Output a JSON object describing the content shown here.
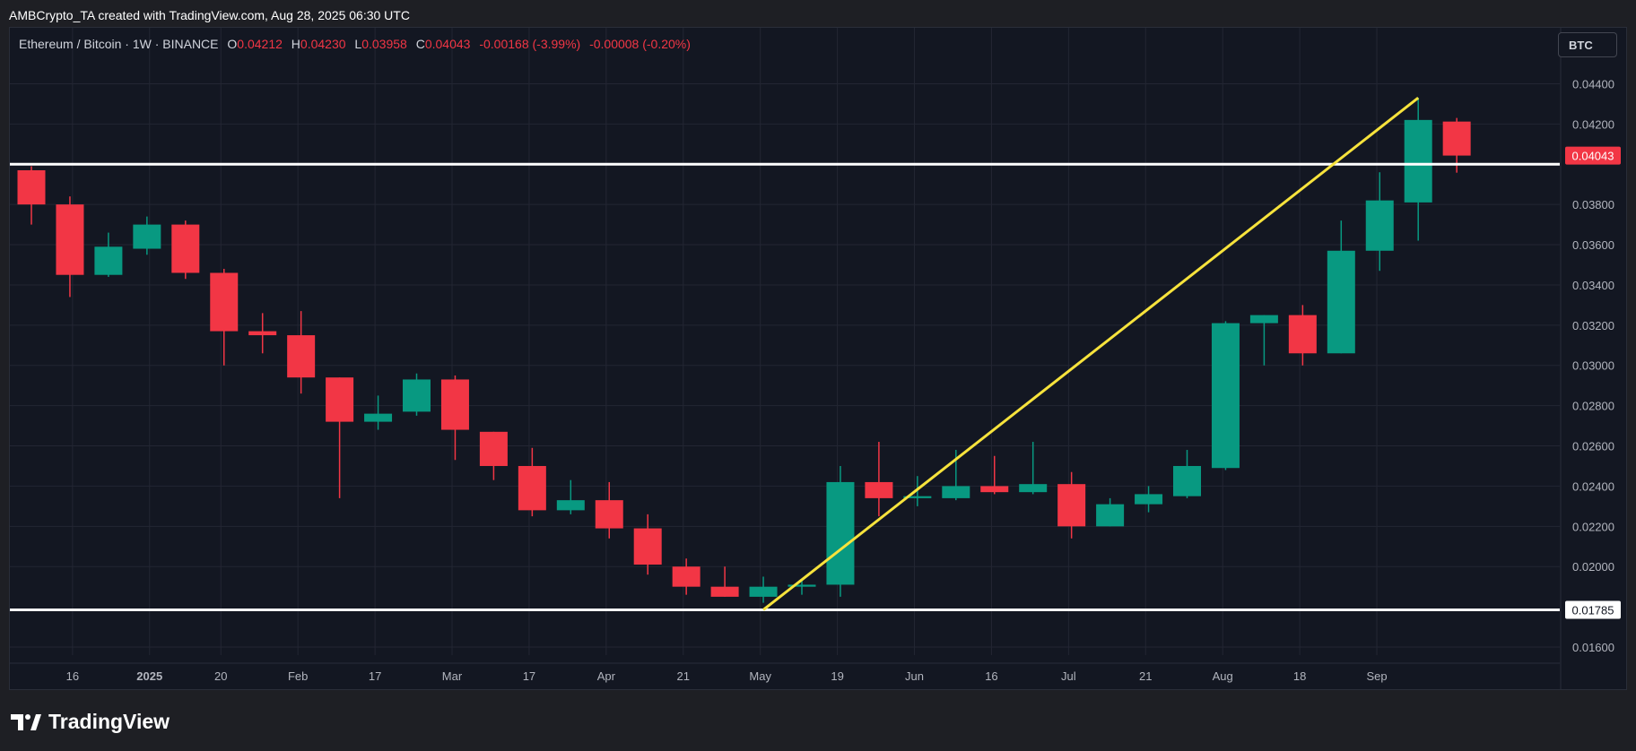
{
  "header": {
    "attribution": "AMBCrypto_TA created with TradingView.com, Aug 28, 2025 06:30 UTC"
  },
  "legend": {
    "symbol": "Ethereum / Bitcoin · 1W · BINANCE",
    "open_label": "O",
    "open": "0.04212",
    "high_label": "H",
    "high": "0.04230",
    "low_label": "L",
    "low": "0.03958",
    "close_label": "C",
    "close": "0.04043",
    "change": "-0.00168 (-3.99%)",
    "change2": "-0.00008 (-0.20%)"
  },
  "currency_button": "BTC",
  "footer": {
    "brand": "TradingView"
  },
  "colors": {
    "up": "#089981",
    "down": "#f23645",
    "trendline": "#f7e33c",
    "level": "#ffffff",
    "background": "#131722",
    "grid": "#232633"
  },
  "chart_data": {
    "type": "candlestick",
    "ylim": [
      0.0156,
      0.045
    ],
    "y_ticks": [
      "0.04400",
      "0.04200",
      "0.03800",
      "0.03600",
      "0.03400",
      "0.03200",
      "0.03000",
      "0.02800",
      "0.02600",
      "0.02400",
      "0.02200",
      "0.02000",
      "0.01600"
    ],
    "x_ticks": [
      "16",
      "2025",
      "20",
      "Feb",
      "17",
      "Mar",
      "17",
      "Apr",
      "21",
      "May",
      "19",
      "Jun",
      "16",
      "Jul",
      "21",
      "Aug",
      "18",
      "Sep"
    ],
    "current_price_label": "0.04043",
    "current_price": 0.04043,
    "support_label": "0.01785",
    "support": 0.01785,
    "resistance": 0.04,
    "trendline": {
      "from": {
        "candle": 19,
        "price": 0.01785
      },
      "to": {
        "candle": 36,
        "price": 0.0433
      }
    },
    "candles": [
      {
        "o": 0.0397,
        "h": 0.0399,
        "l": 0.037,
        "c": 0.038
      },
      {
        "o": 0.038,
        "h": 0.0384,
        "l": 0.0334,
        "c": 0.0345
      },
      {
        "o": 0.0345,
        "h": 0.0366,
        "l": 0.0344,
        "c": 0.0359
      },
      {
        "o": 0.0358,
        "h": 0.0374,
        "l": 0.0355,
        "c": 0.037
      },
      {
        "o": 0.037,
        "h": 0.0372,
        "l": 0.0343,
        "c": 0.0346
      },
      {
        "o": 0.0346,
        "h": 0.0348,
        "l": 0.03,
        "c": 0.0317
      },
      {
        "o": 0.0317,
        "h": 0.0326,
        "l": 0.0306,
        "c": 0.0315
      },
      {
        "o": 0.0315,
        "h": 0.0327,
        "l": 0.0286,
        "c": 0.0294
      },
      {
        "o": 0.0294,
        "h": 0.0294,
        "l": 0.0234,
        "c": 0.0272
      },
      {
        "o": 0.0272,
        "h": 0.0285,
        "l": 0.0268,
        "c": 0.0276
      },
      {
        "o": 0.0277,
        "h": 0.0296,
        "l": 0.0275,
        "c": 0.0293
      },
      {
        "o": 0.0293,
        "h": 0.0295,
        "l": 0.0253,
        "c": 0.0268
      },
      {
        "o": 0.0267,
        "h": 0.0267,
        "l": 0.0243,
        "c": 0.025
      },
      {
        "o": 0.025,
        "h": 0.0259,
        "l": 0.0225,
        "c": 0.0228
      },
      {
        "o": 0.0228,
        "h": 0.0243,
        "l": 0.0226,
        "c": 0.0233
      },
      {
        "o": 0.0233,
        "h": 0.0242,
        "l": 0.0214,
        "c": 0.0219
      },
      {
        "o": 0.0219,
        "h": 0.0226,
        "l": 0.0196,
        "c": 0.0201
      },
      {
        "o": 0.02,
        "h": 0.0204,
        "l": 0.0186,
        "c": 0.019
      },
      {
        "o": 0.019,
        "h": 0.02,
        "l": 0.0185,
        "c": 0.0185
      },
      {
        "o": 0.0185,
        "h": 0.0195,
        "l": 0.0182,
        "c": 0.019
      },
      {
        "o": 0.019,
        "h": 0.0193,
        "l": 0.0186,
        "c": 0.0191
      },
      {
        "o": 0.0191,
        "h": 0.025,
        "l": 0.0185,
        "c": 0.0242
      },
      {
        "o": 0.0242,
        "h": 0.0262,
        "l": 0.0225,
        "c": 0.0234
      },
      {
        "o": 0.0234,
        "h": 0.0245,
        "l": 0.023,
        "c": 0.0235
      },
      {
        "o": 0.0234,
        "h": 0.0258,
        "l": 0.0233,
        "c": 0.024
      },
      {
        "o": 0.024,
        "h": 0.0255,
        "l": 0.0236,
        "c": 0.0237
      },
      {
        "o": 0.0237,
        "h": 0.0262,
        "l": 0.0236,
        "c": 0.0241
      },
      {
        "o": 0.0241,
        "h": 0.0247,
        "l": 0.0214,
        "c": 0.022
      },
      {
        "o": 0.022,
        "h": 0.0234,
        "l": 0.022,
        "c": 0.0231
      },
      {
        "o": 0.0231,
        "h": 0.024,
        "l": 0.0227,
        "c": 0.0236
      },
      {
        "o": 0.0235,
        "h": 0.0258,
        "l": 0.0234,
        "c": 0.025
      },
      {
        "o": 0.0249,
        "h": 0.0322,
        "l": 0.0248,
        "c": 0.0321
      },
      {
        "o": 0.0321,
        "h": 0.0325,
        "l": 0.03,
        "c": 0.0325
      },
      {
        "o": 0.0325,
        "h": 0.033,
        "l": 0.03,
        "c": 0.0306
      },
      {
        "o": 0.0306,
        "h": 0.0372,
        "l": 0.0306,
        "c": 0.0357
      },
      {
        "o": 0.0357,
        "h": 0.0396,
        "l": 0.0347,
        "c": 0.0382
      },
      {
        "o": 0.0381,
        "h": 0.0433,
        "l": 0.0362,
        "c": 0.0422
      },
      {
        "o": 0.04212,
        "h": 0.0423,
        "l": 0.03958,
        "c": 0.04043
      }
    ]
  }
}
